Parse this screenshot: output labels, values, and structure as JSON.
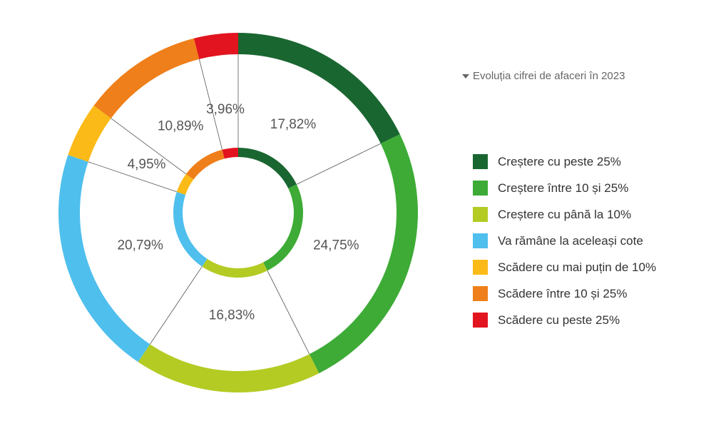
{
  "legend_title": "Evoluția cifrei de afaceri în 2023",
  "chart_data": {
    "type": "pie",
    "categories": [
      "Creștere cu peste 25%",
      "Creștere între 10 și 25%",
      "Creștere cu până la 10%",
      "Va rămâne la aceleași cote",
      "Scădere cu mai puțin de 10%",
      "Scădere între 10 și 25%",
      "Scădere cu peste 25%"
    ],
    "values": [
      17.82,
      24.75,
      16.83,
      20.79,
      4.95,
      10.89,
      3.96
    ],
    "value_labels": [
      "17,82%",
      "24,75%",
      "16,83%",
      "20,79%",
      "4,95%",
      "10,89%",
      "3,96%"
    ],
    "colors": [
      "#1a6631",
      "#3dab36",
      "#b3cb23",
      "#4fbfed",
      "#fbba17",
      "#ef7f1a",
      "#e2141f"
    ],
    "style": "double-ring donut",
    "legend_position": "right"
  }
}
